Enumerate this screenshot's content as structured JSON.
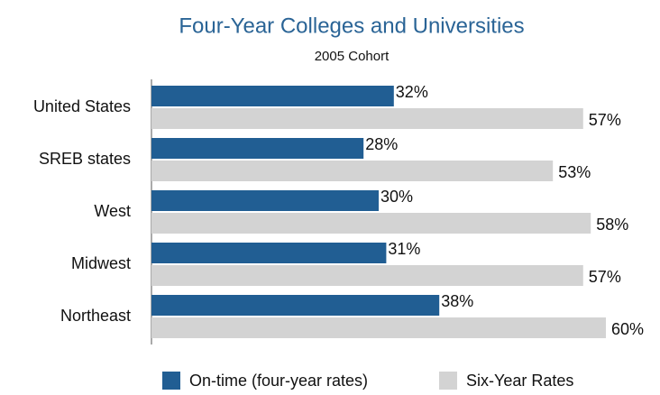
{
  "chart_data": {
    "type": "bar",
    "orientation": "horizontal",
    "title": "Four-Year Colleges and Universities",
    "subtitle": "2005 Cohort",
    "categories": [
      "United States",
      "SREB states",
      "West",
      "Midwest",
      "Northeast"
    ],
    "series": [
      {
        "name": "On-time (four-year rates)",
        "color": "#215e93",
        "values": [
          32,
          28,
          30,
          31,
          38
        ],
        "value_labels": [
          "32%",
          "28%",
          "30%",
          "31%",
          "38%"
        ]
      },
      {
        "name": "Six-Year Rates",
        "color": "#d3d3d3",
        "values": [
          57,
          53,
          58,
          57,
          60
        ],
        "value_labels": [
          "57%",
          "53%",
          "58%",
          "57%",
          "60%"
        ]
      }
    ],
    "legend": "bottom"
  }
}
